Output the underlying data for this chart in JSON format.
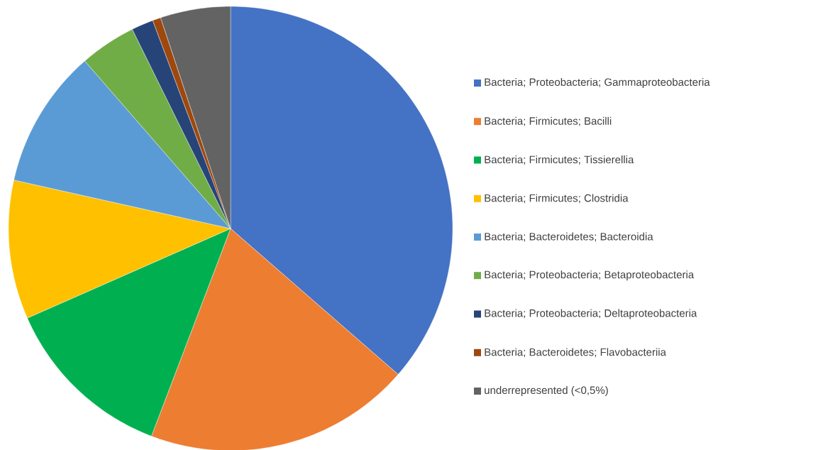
{
  "chart_data": {
    "type": "pie",
    "categories": [
      "Bacteria; Proteobacteria; Gammaproteobacteria",
      "Bacteria; Firmicutes; Bacilli",
      "Bacteria; Firmicutes; Tissierellia",
      "Bacteria; Firmicutes; Clostridia",
      "Bacteria; Bacteroidetes; Bacteroidia",
      "Bacteria; Proteobacteria; Betaproteobacteria",
      "Bacteria; Proteobacteria; Deltaproteobacteria",
      "Bacteria; Bacteroidetes; Flavobacteriia",
      "underrepresented (<0,5%)"
    ],
    "values": [
      36.4,
      19.4,
      12.6,
      10.1,
      10.1,
      4.1,
      1.6,
      0.6,
      5.1
    ],
    "colors": [
      "#4472c4",
      "#ed7d31",
      "#00b050",
      "#ffc000",
      "#5b9bd5",
      "#70ad47",
      "#264478",
      "#9e480e",
      "#636363"
    ],
    "legend": "right"
  }
}
